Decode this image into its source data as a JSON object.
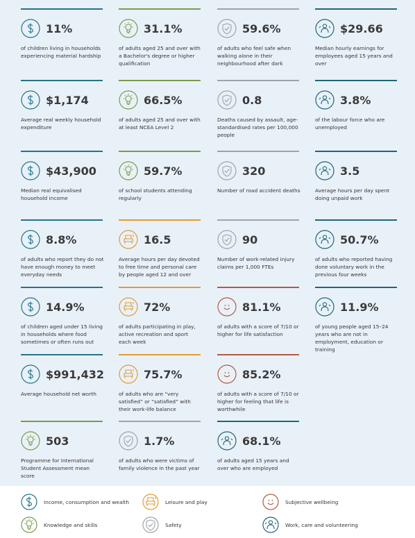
{
  "legend": {
    "items": [
      {
        "label": "Income, consumption and wealth",
        "color": "#23738a"
      },
      {
        "label": "Knowledge and skills",
        "color": "#7a9a4a"
      },
      {
        "label": "Leisure and play",
        "color": "#e29a33"
      },
      {
        "label": "Safety",
        "color": "#9ea3a8"
      },
      {
        "label": "Subjective wellbeing",
        "color": "#b35a40"
      },
      {
        "label": "Work, care and volunteering",
        "color": "#1e6678"
      }
    ]
  },
  "columns": [
    [
      {
        "value": "11%",
        "text": "of children living in households experiencing material hardship",
        "domain": 0
      },
      {
        "value": "$1,174",
        "text": "Average real weekly household expenditure",
        "domain": 0
      },
      {
        "value": "$43,900",
        "text": "Median real equivalised household income",
        "domain": 0
      },
      {
        "value": "8.8%",
        "text": "of adults who report they do not have enough money to meet everyday needs",
        "domain": 0
      },
      {
        "value": "14.9%",
        "text": "of children aged under 15 living in households where food sometimes or often runs out",
        "domain": 0
      },
      {
        "value": "$991,432",
        "text": "Average household net worth",
        "domain": 0
      },
      {
        "value": "503",
        "text": "Programme for International Student Assessment mean score",
        "domain": 1
      }
    ],
    [
      {
        "value": "31.1%",
        "text": "of adults aged 25 and over with a Bachelor's degree or higher qualification",
        "domain": 1
      },
      {
        "value": "66.5%",
        "text": "of adults aged 25 and over with at least NCEA Level 2",
        "domain": 1
      },
      {
        "value": "59.7%",
        "text": "of school students attending regularly",
        "domain": 1
      },
      {
        "value": "16.5",
        "text": "Average hours per day devoted to free time and personal care by people aged 12 and over",
        "domain": 2
      },
      {
        "value": "72%",
        "text": "of adults participating in play, active recreation and sport each week",
        "domain": 2
      },
      {
        "value": "75.7%",
        "text": "of adults who are “very satisfied” or “satisfied” with their work-life balance",
        "domain": 2
      },
      {
        "value": "1.7%",
        "text": "of adults who were victims of family violence in the past year",
        "domain": 3
      }
    ],
    [
      {
        "value": "59.6%",
        "text": "of adults who feel safe when walking alone in their neighbourhood after dark",
        "domain": 3
      },
      {
        "value": "0.8",
        "text": "Deaths caused by assault, age-standardised rates per 100,000 people",
        "domain": 3
      },
      {
        "value": "320",
        "text": "Number of road accident deaths",
        "domain": 3
      },
      {
        "value": "90",
        "text": "Number of work-related injury claims per 1,000 FTEs",
        "domain": 3
      },
      {
        "value": "81.1%",
        "text": "of adults with a score of 7/10 or higher for life satisfaction",
        "domain": 4
      },
      {
        "value": "85.2%",
        "text": "of adults with a score of 7/10 or higher for feeling that life is worthwhile",
        "domain": 4
      },
      {
        "value": "68.1%",
        "text": "of adults aged 15 years and over who are employed",
        "domain": 5
      }
    ],
    [
      {
        "value": "$29.66",
        "text": "Median hourly earnings for employees aged 15 years and over",
        "domain": 5
      },
      {
        "value": "3.8%",
        "text": "of the labour force who are unemployed",
        "domain": 5
      },
      {
        "value": "3.5",
        "text": "Average hours per day spent doing unpaid work",
        "domain": 5
      },
      {
        "value": "50.7%",
        "text": "of adults who reported having done voluntary work in the previous four weeks",
        "domain": 5
      },
      {
        "value": "11.9%",
        "text": "of young people aged 15–24 years who are not in employment, education or training",
        "domain": 5
      }
    ]
  ]
}
